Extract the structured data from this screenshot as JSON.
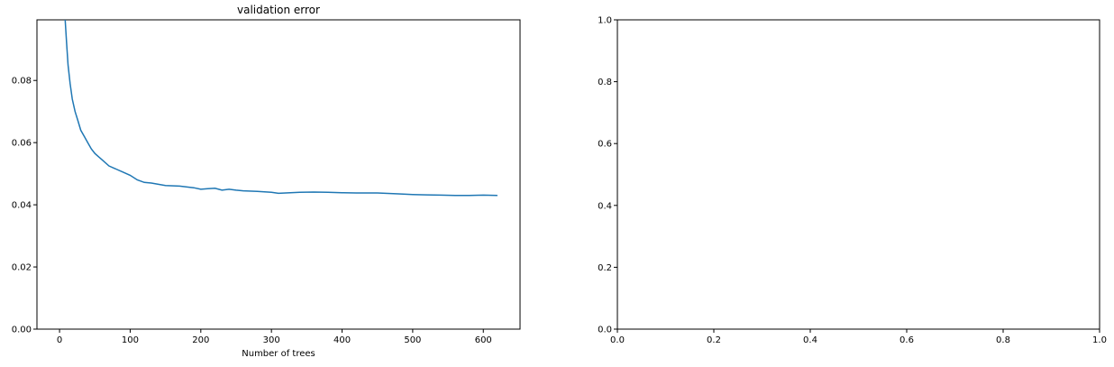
{
  "chart_data": [
    {
      "type": "line",
      "title": "validation error",
      "xlabel": "Number of trees",
      "ylabel": "",
      "xlim": [
        -32,
        652
      ],
      "ylim": [
        0,
        0.0995
      ],
      "xticks": [
        0,
        100,
        200,
        300,
        400,
        500,
        600
      ],
      "xtick_labels": [
        "0",
        "100",
        "200",
        "300",
        "400",
        "500",
        "600"
      ],
      "yticks": [
        0,
        0.02,
        0.04,
        0.06,
        0.08
      ],
      "ytick_labels": [
        "0.00",
        "0.02",
        "0.04",
        "0.06",
        "0.08"
      ],
      "grid": false,
      "series": [
        {
          "color": "#1f77b4",
          "x": [
            8,
            10,
            12,
            15,
            18,
            22,
            26,
            30,
            35,
            40,
            45,
            50,
            55,
            60,
            70,
            80,
            90,
            100,
            110,
            120,
            130,
            150,
            170,
            190,
            200,
            210,
            220,
            230,
            240,
            250,
            260,
            280,
            300,
            310,
            320,
            340,
            360,
            380,
            400,
            420,
            450,
            480,
            500,
            520,
            540,
            560,
            580,
            600,
            620
          ],
          "y": [
            0.0995,
            0.092,
            0.085,
            0.079,
            0.074,
            0.07,
            0.067,
            0.064,
            0.062,
            0.06,
            0.058,
            0.0565,
            0.0555,
            0.0545,
            0.0525,
            0.0515,
            0.0505,
            0.0495,
            0.048,
            0.0472,
            0.047,
            0.0462,
            0.046,
            0.0455,
            0.045,
            0.0452,
            0.0453,
            0.0447,
            0.045,
            0.0447,
            0.0445,
            0.0443,
            0.044,
            0.0437,
            0.0438,
            0.044,
            0.0441,
            0.044,
            0.0439,
            0.0438,
            0.0438,
            0.0435,
            0.0433,
            0.0432,
            0.0431,
            0.043,
            0.043,
            0.0431,
            0.043
          ]
        }
      ]
    },
    {
      "type": "line",
      "title": "",
      "xlabel": "",
      "ylabel": "",
      "xlim": [
        0,
        1
      ],
      "ylim": [
        0,
        1
      ],
      "xticks": [
        0,
        0.2,
        0.4,
        0.6,
        0.8,
        1.0
      ],
      "xtick_labels": [
        "0.0",
        "0.2",
        "0.4",
        "0.6",
        "0.8",
        "1.0"
      ],
      "yticks": [
        0,
        0.2,
        0.4,
        0.6,
        0.8,
        1.0
      ],
      "ytick_labels": [
        "0.0",
        "0.2",
        "0.4",
        "0.6",
        "0.8",
        "1.0"
      ],
      "grid": false,
      "series": []
    }
  ]
}
